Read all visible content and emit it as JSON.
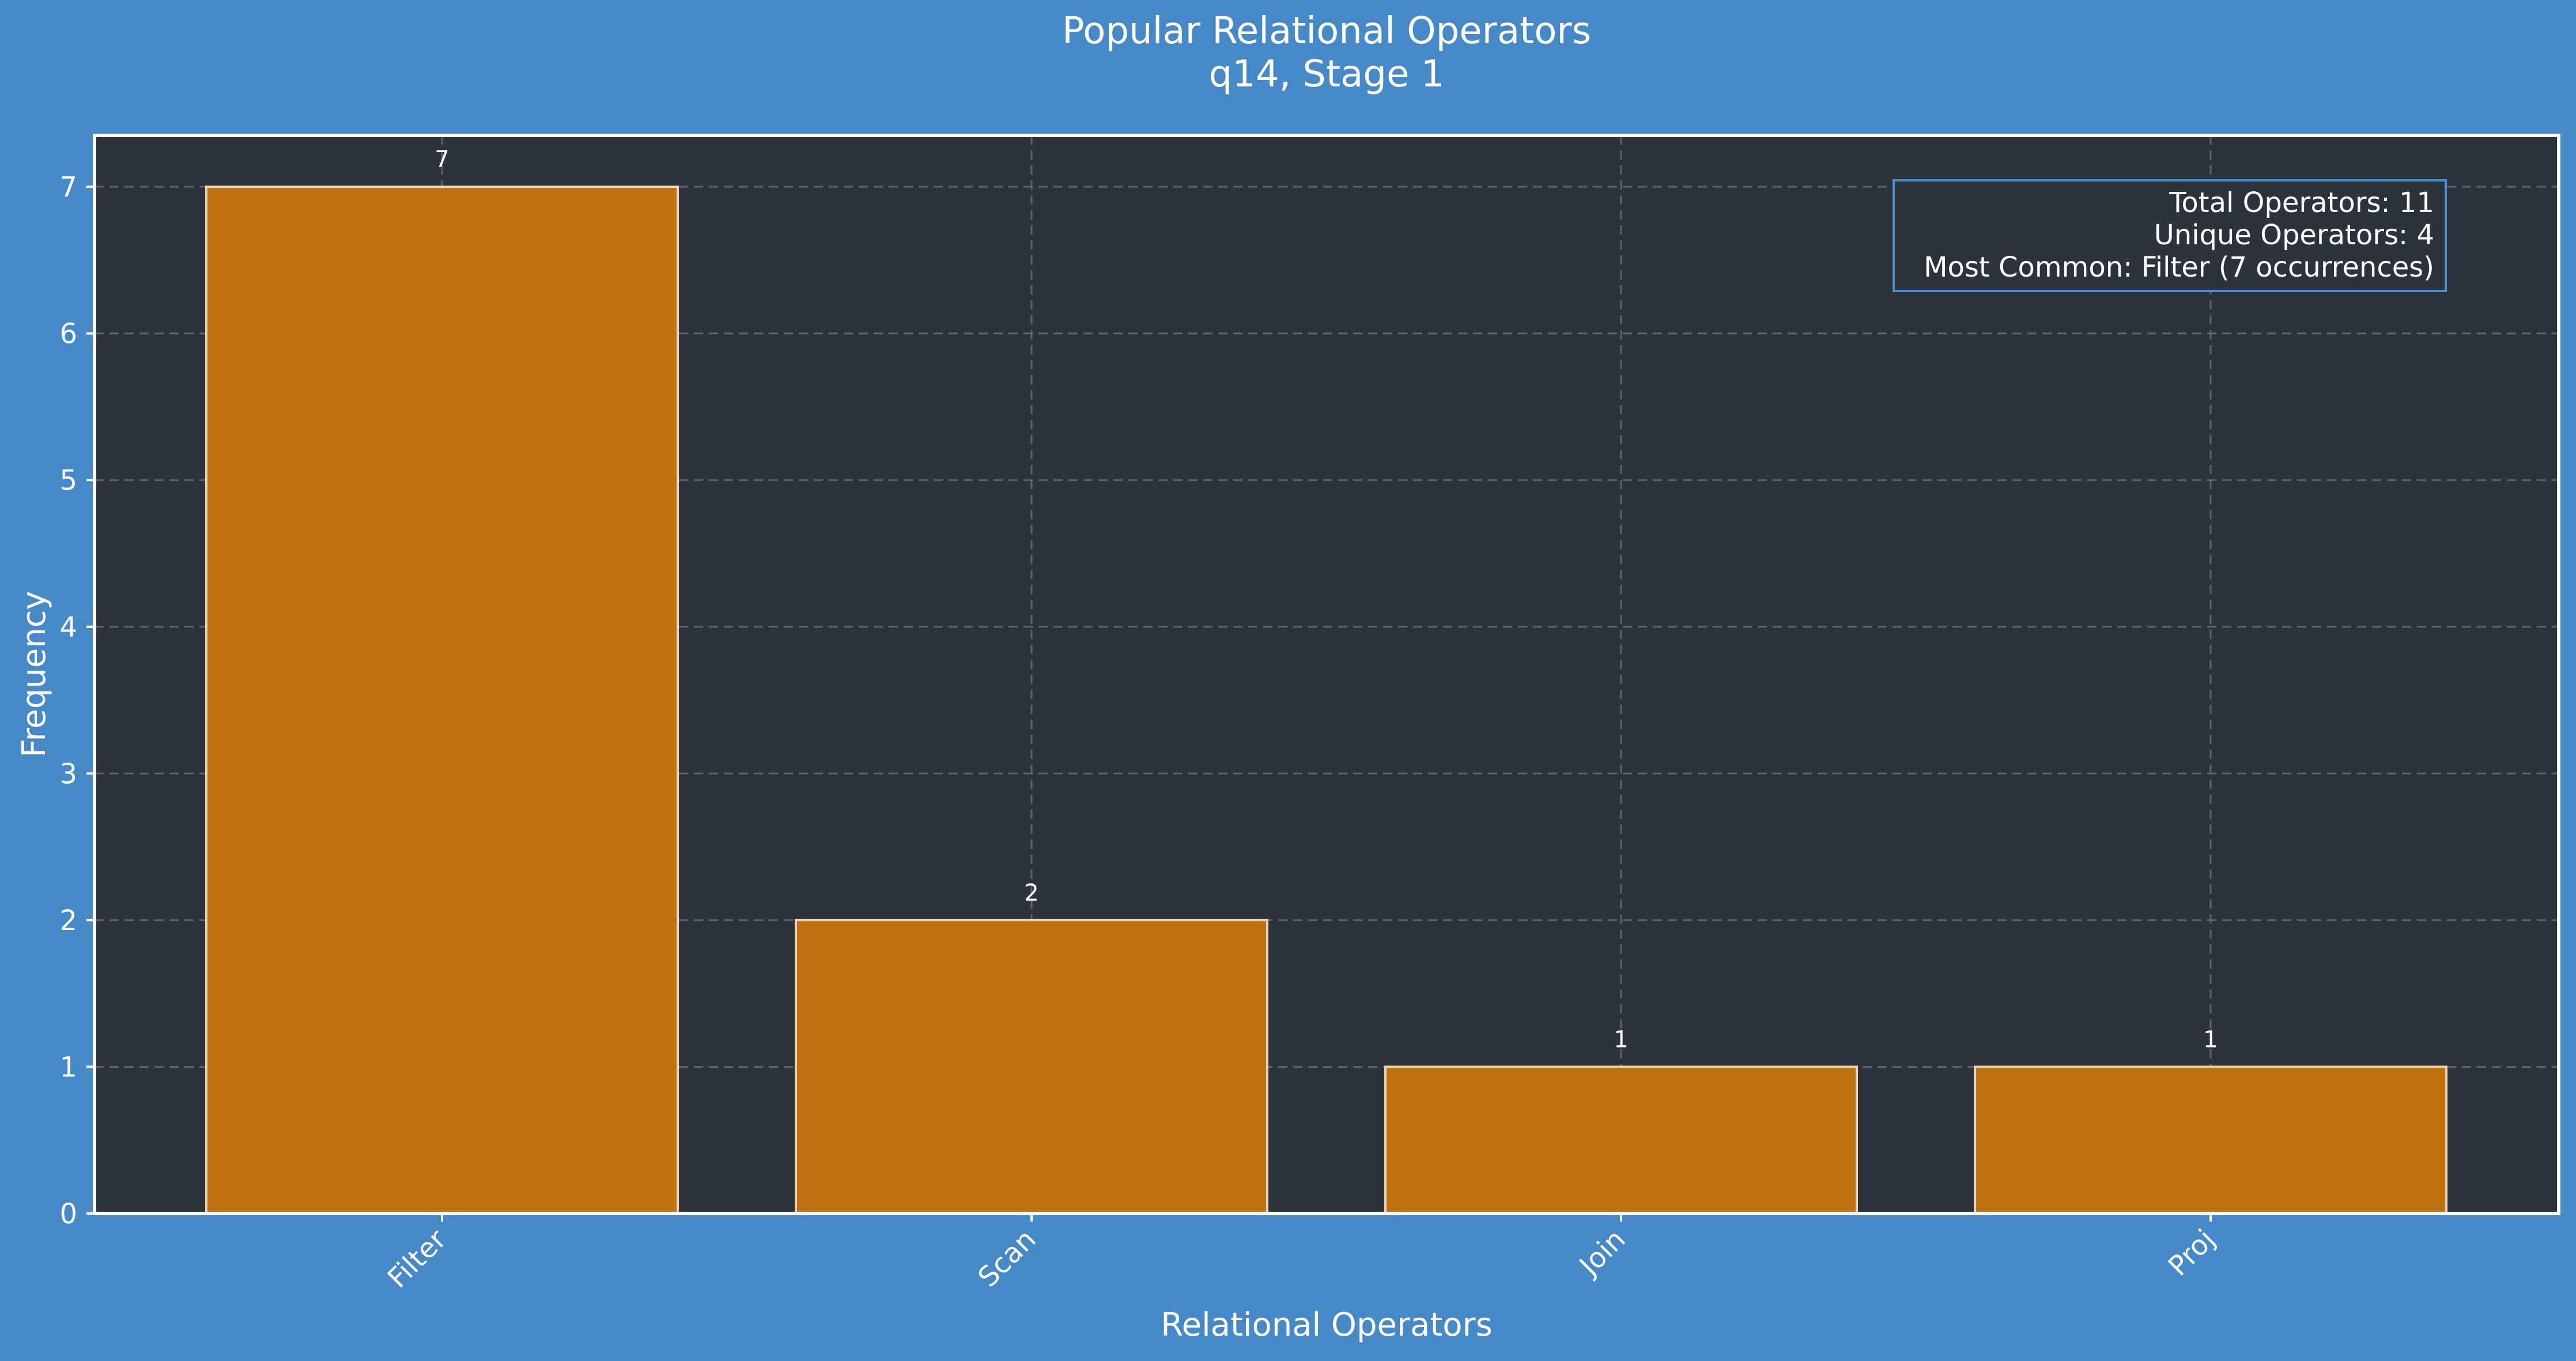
{
  "colors": {
    "figure_background": "#4589c9",
    "plot_background": "#2e333b",
    "bar_fill": "#c07112",
    "bar_edge": "#e8d2b8",
    "text": "#ffffff",
    "grid": "#6b6f75",
    "stats_box_edge": "#4a8fd4"
  },
  "chart_data": {
    "type": "bar",
    "title": "Popular Relational Operators",
    "subtitle": "q14, Stage 1",
    "xlabel": "Relational Operators",
    "ylabel": "Frequency",
    "categories": [
      "Filter",
      "Scan",
      "Join",
      "Proj"
    ],
    "values": [
      7,
      2,
      1,
      1
    ],
    "ylim": [
      0,
      7.35
    ],
    "yticks": [
      0,
      1,
      2,
      3,
      4,
      5,
      6,
      7
    ],
    "grid": true,
    "data_labels": true,
    "stats_box": {
      "placement": "top-right",
      "lines": [
        "Total Operators: 11",
        "Unique Operators: 4",
        "Most Common: Filter (7 occurrences)"
      ]
    }
  }
}
